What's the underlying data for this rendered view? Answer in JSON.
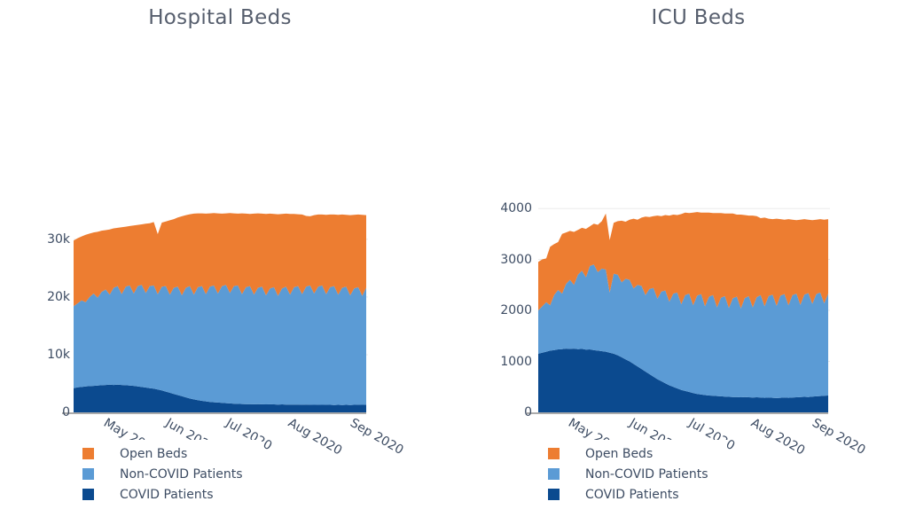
{
  "style": {
    "background": "#ffffff",
    "text_color": "#3d4c63",
    "title_color": "#575f6e",
    "grid_color": "#ebebeb",
    "axis_line_color": "#8f8f8f",
    "open_beds_color": "#ED7D31",
    "non_covid_color": "#5B9BD5",
    "covid_color": "#0B4A8F"
  },
  "chart_data": [
    {
      "type": "area",
      "stacked": true,
      "title": "Hospital Beds",
      "x_start": "2020-04-12",
      "x_end": "2020-09-05",
      "x_step_days": 2,
      "ylim": [
        0,
        36900
      ],
      "grid": true,
      "legend_position": "bottom-left",
      "yticks": [
        {
          "value": 0,
          "label": "0"
        },
        {
          "value": 10000,
          "label": "10k"
        },
        {
          "value": 20000,
          "label": "20k"
        },
        {
          "value": 30000,
          "label": "30k"
        }
      ],
      "xticks": [
        {
          "day": 19,
          "label": "May 2020"
        },
        {
          "day": 50,
          "label": "Jun 2020"
        },
        {
          "day": 80,
          "label": "Jul 2020"
        },
        {
          "day": 111,
          "label": "Aug 2020"
        },
        {
          "day": 142,
          "label": "Sep 2020"
        }
      ],
      "series": [
        {
          "name": "COVID Patients",
          "color": "#0B4A8F",
          "values": [
            4200,
            4350,
            4400,
            4500,
            4550,
            4600,
            4650,
            4700,
            4750,
            4800,
            4750,
            4800,
            4750,
            4700,
            4650,
            4600,
            4500,
            4400,
            4300,
            4200,
            4100,
            3950,
            3800,
            3600,
            3400,
            3200,
            3000,
            2800,
            2600,
            2400,
            2250,
            2100,
            2000,
            1900,
            1800,
            1750,
            1700,
            1650,
            1600,
            1550,
            1500,
            1480,
            1450,
            1430,
            1420,
            1400,
            1420,
            1400,
            1380,
            1400,
            1380,
            1360,
            1380,
            1360,
            1340,
            1360,
            1340,
            1320,
            1340,
            1320,
            1300,
            1320,
            1300,
            1320,
            1300,
            1280,
            1300,
            1280,
            1300,
            1280,
            1300,
            1320,
            1300,
            1320
          ]
        },
        {
          "name": "Non-COVID Patients",
          "color": "#5B9BD5",
          "values": [
            14200,
            14550,
            15000,
            14600,
            15450,
            16000,
            15250,
            16200,
            16550,
            15600,
            16850,
            17100,
            15750,
            17100,
            17350,
            16000,
            17400,
            17700,
            16400,
            17700,
            17900,
            16550,
            18000,
            18300,
            17000,
            18400,
            18800,
            17500,
            19000,
            19500,
            18150,
            19600,
            19900,
            18600,
            20000,
            20250,
            18900,
            20250,
            20500,
            19150,
            20400,
            20520,
            19050,
            20270,
            20480,
            19000,
            20180,
            20400,
            18920,
            20100,
            20320,
            18840,
            20120,
            20440,
            19060,
            20340,
            20560,
            19180,
            20460,
            20680,
            19300,
            20480,
            20700,
            19180,
            20400,
            20620,
            19100,
            20320,
            20500,
            19020,
            20200,
            20380,
            18900,
            20280
          ]
        },
        {
          "name": "Open Beds",
          "color": "#ED7D31",
          "values": [
            11400,
            11300,
            11100,
            11700,
            11000,
            10600,
            11400,
            10600,
            10300,
            11300,
            10300,
            10100,
            11600,
            10400,
            10300,
            11800,
            10600,
            10500,
            12000,
            10900,
            11000,
            10400,
            11100,
            11200,
            12900,
            11900,
            12000,
            13700,
            12600,
            12450,
            14050,
            12800,
            12600,
            13950,
            12700,
            12550,
            13900,
            12550,
            12400,
            13850,
            12600,
            12450,
            14000,
            12750,
            12500,
            14050,
            12900,
            12650,
            14100,
            12950,
            12700,
            14150,
            12900,
            12650,
            14000,
            12700,
            12450,
            13800,
            12250,
            12000,
            13600,
            12500,
            12300,
            13750,
            12600,
            12400,
            13850,
            12700,
            12450,
            13900,
            12750,
            12600,
            14050,
            12600
          ]
        }
      ]
    },
    {
      "type": "area",
      "stacked": true,
      "title": "ICU Beds",
      "x_start": "2020-04-12",
      "x_end": "2020-09-05",
      "x_step_days": 2,
      "ylim": [
        0,
        4175
      ],
      "grid": true,
      "legend_position": "bottom-left",
      "yticks": [
        {
          "value": 0,
          "label": "0"
        },
        {
          "value": 1000,
          "label": "1000"
        },
        {
          "value": 2000,
          "label": "2000"
        },
        {
          "value": 3000,
          "label": "3000"
        },
        {
          "value": 4000,
          "label": "4000"
        }
      ],
      "xticks": [
        {
          "day": 19,
          "label": "May 2020"
        },
        {
          "day": 50,
          "label": "Jun 2020"
        },
        {
          "day": 80,
          "label": "Jul 2020"
        },
        {
          "day": 111,
          "label": "Aug 2020"
        },
        {
          "day": 142,
          "label": "Sep 2020"
        }
      ],
      "series": [
        {
          "name": "COVID Patients",
          "color": "#0B4A8F",
          "values": [
            1150,
            1170,
            1190,
            1210,
            1220,
            1235,
            1240,
            1250,
            1245,
            1250,
            1240,
            1245,
            1230,
            1235,
            1220,
            1210,
            1200,
            1190,
            1170,
            1150,
            1120,
            1080,
            1040,
            1000,
            950,
            900,
            850,
            800,
            750,
            700,
            650,
            610,
            570,
            530,
            500,
            470,
            440,
            420,
            400,
            380,
            360,
            350,
            340,
            330,
            325,
            320,
            315,
            310,
            305,
            300,
            300,
            295,
            300,
            295,
            290,
            295,
            290,
            285,
            290,
            285,
            280,
            285,
            290,
            285,
            290,
            295,
            300,
            305,
            300,
            310,
            315,
            320,
            325,
            330
          ]
        },
        {
          "name": "Non-COVID Patients",
          "color": "#5B9BD5",
          "values": [
            850,
            910,
            970,
            890,
            1080,
            1165,
            1090,
            1270,
            1355,
            1250,
            1460,
            1535,
            1420,
            1635,
            1680,
            1540,
            1620,
            1610,
            1180,
            1570,
            1580,
            1470,
            1580,
            1600,
            1480,
            1600,
            1630,
            1500,
            1670,
            1740,
            1580,
            1760,
            1820,
            1640,
            1830,
            1880,
            1680,
            1880,
            1930,
            1720,
            1930,
            1970,
            1740,
            1940,
            1975,
            1740,
            1935,
            1970,
            1745,
            1940,
            1970,
            1745,
            1940,
            1985,
            1770,
            1965,
            2010,
            1795,
            1990,
            2025,
            1810,
            2005,
            2030,
            1815,
            2010,
            2035,
            1810,
            2005,
            2040,
            1820,
            2005,
            2030,
            1815,
            2000
          ]
        },
        {
          "name": "Open Beds",
          "color": "#ED7D31",
          "values": [
            950,
            920,
            860,
            1150,
            1000,
            940,
            1170,
            1010,
            960,
            1040,
            880,
            840,
            950,
            780,
            800,
            930,
            930,
            1100,
            1030,
            1000,
            1050,
            1210,
            1120,
            1180,
            1370,
            1280,
            1340,
            1540,
            1410,
            1410,
            1630,
            1480,
            1480,
            1690,
            1550,
            1520,
            1770,
            1620,
            1580,
            1820,
            1640,
            1600,
            1840,
            1650,
            1610,
            1850,
            1660,
            1620,
            1850,
            1660,
            1610,
            1840,
            1630,
            1580,
            1800,
            1590,
            1510,
            1740,
            1520,
            1480,
            1710,
            1500,
            1460,
            1690,
            1480,
            1440,
            1670,
            1480,
            1440,
            1640,
            1460,
            1440,
            1640,
            1460
          ]
        }
      ]
    }
  ]
}
